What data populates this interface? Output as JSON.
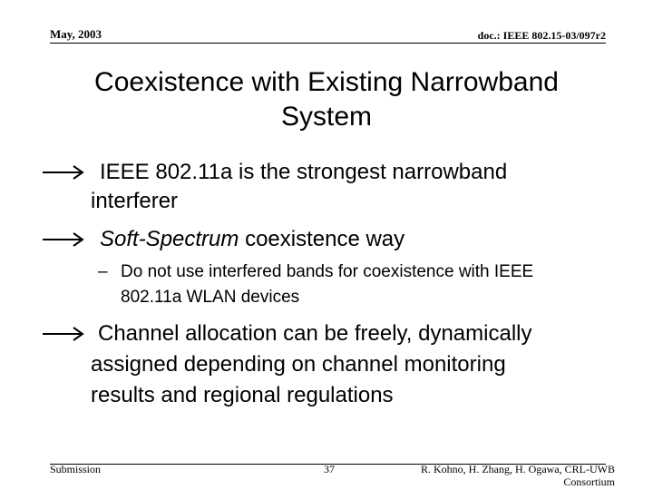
{
  "header": {
    "date": "May, 2003",
    "doc_id": "doc.: IEEE 802.15-03/097r2"
  },
  "title": "Coexistence with Existing Narrowband System",
  "bullets": [
    {
      "text": "IEEE 802.11a is the strongest narrowband interferer"
    },
    {
      "emphasis": "Soft-Spectrum",
      "text": "coexistence way",
      "sub_bullets": [
        "Do not use interfered bands for coexistence with IEEE 802.11a WLAN devices"
      ]
    },
    {
      "text": "Channel allocation can be freely, dynamically assigned depending on channel monitoring results and regional regulations"
    }
  ],
  "footer": {
    "left": "Submission",
    "page": "37",
    "author": "R. Kohno, H. Zhang, H. Ogawa, CRL-UWB Consortium"
  }
}
